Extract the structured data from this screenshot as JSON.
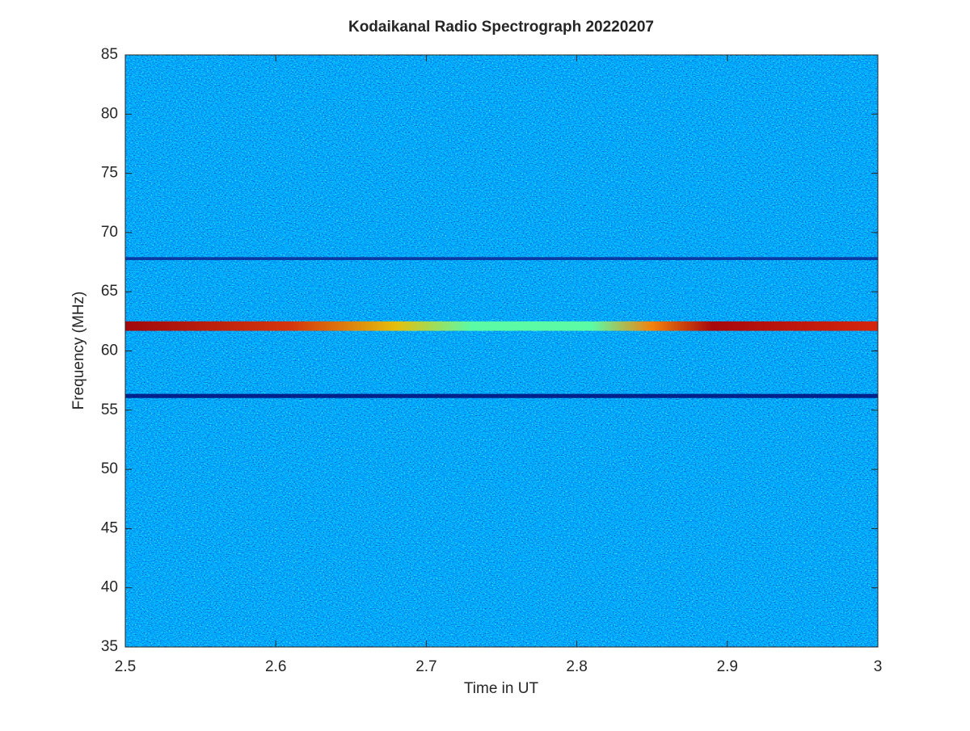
{
  "chart_data": {
    "type": "spectrogram",
    "title": "Kodaikanal Radio Spectrograph  20220207",
    "xlabel": "Time in UT",
    "ylabel": "Frequency (MHz)",
    "xlim": [
      2.5,
      3
    ],
    "ylim": [
      35,
      85
    ],
    "xticks": [
      2.5,
      2.6,
      2.7,
      2.8,
      2.9,
      3
    ],
    "yticks": [
      35,
      40,
      45,
      50,
      55,
      60,
      65,
      70,
      75,
      80,
      85
    ],
    "bands": [
      {
        "y": 62.1,
        "width": 0.8,
        "color": "#c00000"
      },
      {
        "y": 56.2,
        "width": 0.35,
        "color": "#00006e"
      },
      {
        "y": 67.8,
        "width": 0.25,
        "color": "#0a1f8c"
      }
    ]
  }
}
